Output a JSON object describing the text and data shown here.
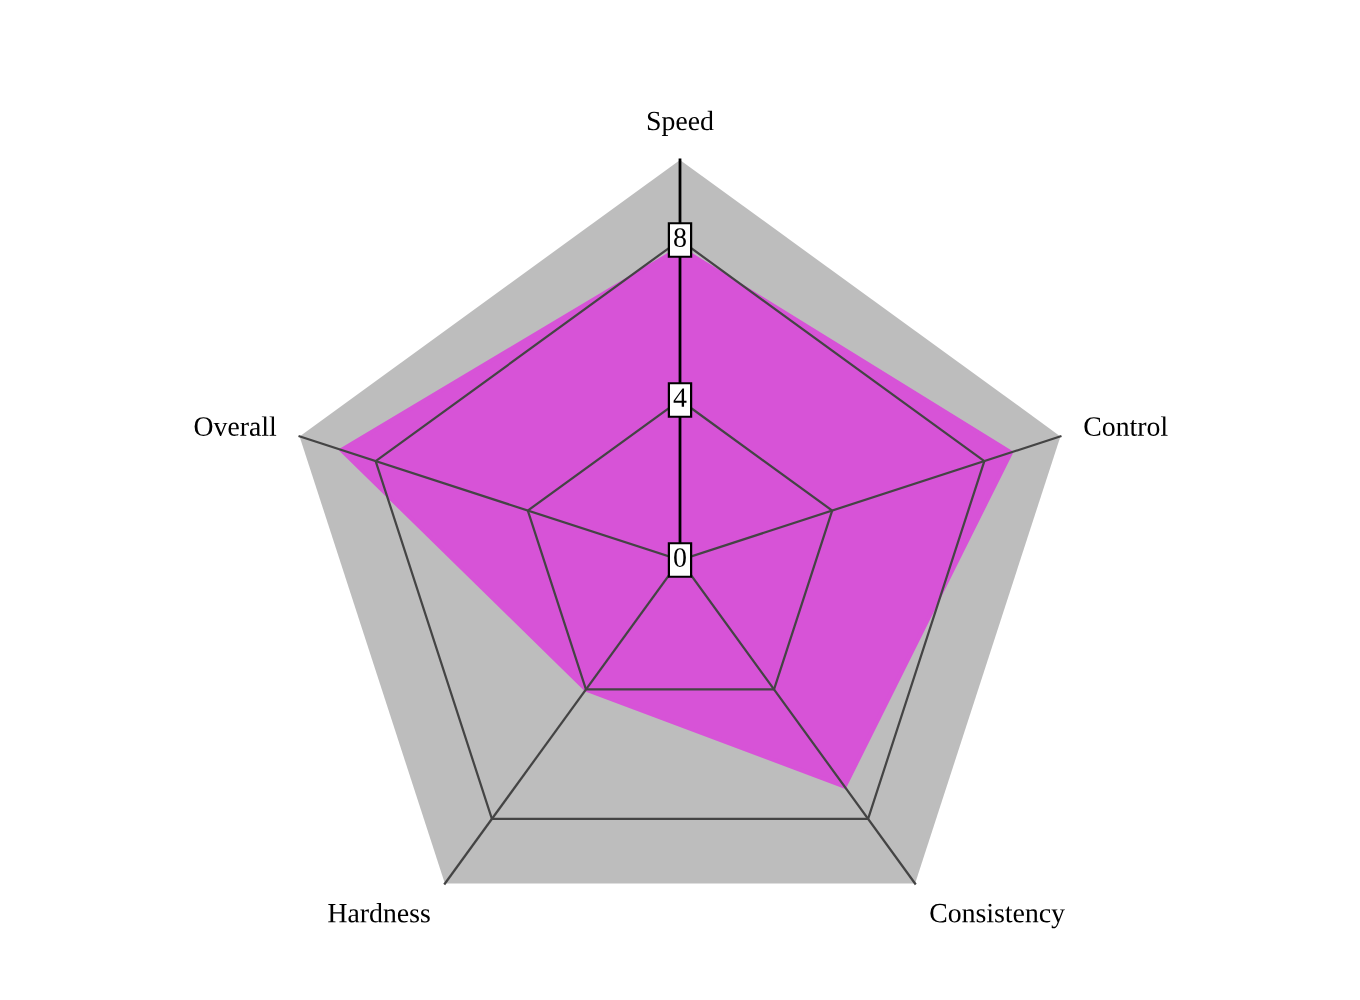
{
  "chart_data": {
    "type": "radar",
    "categories": [
      "Speed",
      "Control",
      "Consistency",
      "Hardness",
      "Overall"
    ],
    "series": [
      {
        "color": "#e030e0",
        "values": [
          7.8,
          8.7,
          7.0,
          4.0,
          8.9
        ]
      }
    ],
    "ylim": [
      0,
      10
    ],
    "yticks": [
      0,
      4,
      8
    ],
    "grid": true
  }
}
